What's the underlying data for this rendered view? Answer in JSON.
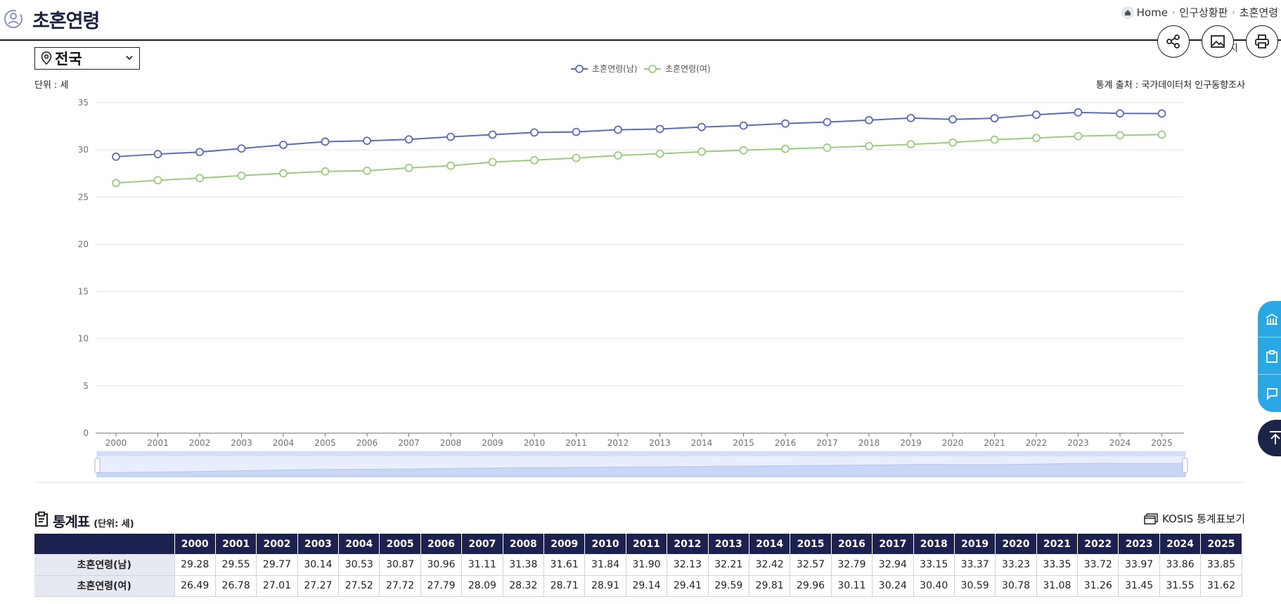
{
  "header": {
    "title": "초혼연령",
    "breadcrumb": [
      "Home",
      "인구상황판",
      "초혼연령"
    ]
  },
  "toolbar": {
    "share_icon": "share-icon",
    "image_icon": "image-save-icon",
    "print_icon": "print-icon",
    "partial_label": "지"
  },
  "region": {
    "selected": "전국"
  },
  "chart_meta": {
    "unit": "단위 : 세",
    "source": "통계 출처 : 국가데이터처 인구동향조사"
  },
  "colors": {
    "male": "#5b6bb8",
    "female": "#9bcb7e",
    "header_bg": "#1d2150",
    "side_blue": "#2aa8e6"
  },
  "chart_data": {
    "type": "line",
    "x": [
      "2000",
      "2001",
      "2002",
      "2003",
      "2004",
      "2005",
      "2006",
      "2007",
      "2008",
      "2009",
      "2010",
      "2011",
      "2012",
      "2013",
      "2014",
      "2015",
      "2016",
      "2017",
      "2018",
      "2019",
      "2020",
      "2021",
      "2022",
      "2023",
      "2024",
      "2025"
    ],
    "series": [
      {
        "name": "초혼연령(남)",
        "values": [
          29.28,
          29.55,
          29.77,
          30.14,
          30.53,
          30.87,
          30.96,
          31.11,
          31.38,
          31.61,
          31.84,
          31.9,
          32.13,
          32.21,
          32.42,
          32.57,
          32.79,
          32.94,
          33.15,
          33.37,
          33.23,
          33.35,
          33.72,
          33.97,
          33.86,
          33.85
        ]
      },
      {
        "name": "초혼연령(여)",
        "values": [
          26.49,
          26.78,
          27.01,
          27.27,
          27.52,
          27.72,
          27.79,
          28.09,
          28.32,
          28.71,
          28.91,
          29.14,
          29.41,
          29.59,
          29.81,
          29.96,
          30.11,
          30.24,
          30.4,
          30.59,
          30.78,
          31.08,
          31.26,
          31.45,
          31.55,
          31.62
        ]
      }
    ],
    "ylim": [
      0,
      35
    ],
    "yticks": [
      "0",
      "5",
      "10",
      "15",
      "20",
      "25",
      "30",
      "35"
    ],
    "legend": "top-center",
    "grid": true
  },
  "table": {
    "title": "통계표",
    "unit": "(단위: 세)",
    "kosis_label": "KOSIS 통계표보기",
    "years": [
      "2000",
      "2001",
      "2002",
      "2003",
      "2004",
      "2005",
      "2006",
      "2007",
      "2008",
      "2009",
      "2010",
      "2011",
      "2012",
      "2013",
      "2014",
      "2015",
      "2016",
      "2017",
      "2018",
      "2019",
      "2020",
      "2021",
      "2022",
      "2023",
      "2024",
      "2025"
    ],
    "rows": [
      {
        "label": "초혼연령(남)",
        "values": [
          "29.28",
          "29.55",
          "29.77",
          "30.14",
          "30.53",
          "30.87",
          "30.96",
          "31.11",
          "31.38",
          "31.61",
          "31.84",
          "31.90",
          "32.13",
          "32.21",
          "32.42",
          "32.57",
          "32.79",
          "32.94",
          "33.15",
          "33.37",
          "33.23",
          "33.35",
          "33.72",
          "33.97",
          "33.86",
          "33.85"
        ]
      },
      {
        "label": "초혼연령(여)",
        "values": [
          "26.49",
          "26.78",
          "27.01",
          "27.27",
          "27.52",
          "27.72",
          "27.79",
          "28.09",
          "28.32",
          "28.71",
          "28.91",
          "29.14",
          "29.41",
          "29.59",
          "29.81",
          "29.96",
          "30.11",
          "30.24",
          "30.40",
          "30.59",
          "30.78",
          "31.08",
          "31.26",
          "31.45",
          "31.55",
          "31.62"
        ]
      }
    ]
  }
}
